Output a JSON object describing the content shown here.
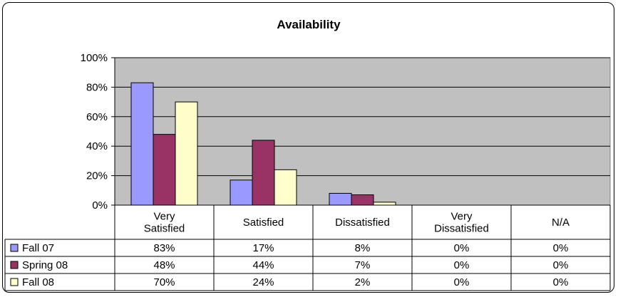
{
  "chart_data": {
    "type": "bar",
    "title": "Availability",
    "categories": [
      [
        "Very",
        "Satisfied"
      ],
      [
        "Satisfied"
      ],
      [
        "Dissatisfied"
      ],
      [
        "Very",
        "Dissatisfied"
      ],
      [
        "N/A"
      ]
    ],
    "series": [
      {
        "name": "Fall 07",
        "color": "#9999FF",
        "values": [
          83,
          17,
          8,
          0,
          0
        ],
        "labels": [
          "83%",
          "17%",
          "8%",
          "0%",
          "0%"
        ]
      },
      {
        "name": "Spring 08",
        "color": "#993366",
        "values": [
          48,
          44,
          7,
          0,
          0
        ],
        "labels": [
          "48%",
          "44%",
          "7%",
          "0%",
          "0%"
        ]
      },
      {
        "name": "Fall 08",
        "color": "#FFFFCC",
        "values": [
          70,
          24,
          2,
          0,
          0
        ],
        "labels": [
          "70%",
          "24%",
          "2%",
          "0%",
          "0%"
        ]
      }
    ],
    "y_ticks": [
      "0%",
      "20%",
      "40%",
      "60%",
      "80%",
      "100%"
    ],
    "ylim": [
      0,
      100
    ],
    "plot_background": "#C0C0C0",
    "grid": true,
    "legend": "data-table-left",
    "data_table": true
  }
}
